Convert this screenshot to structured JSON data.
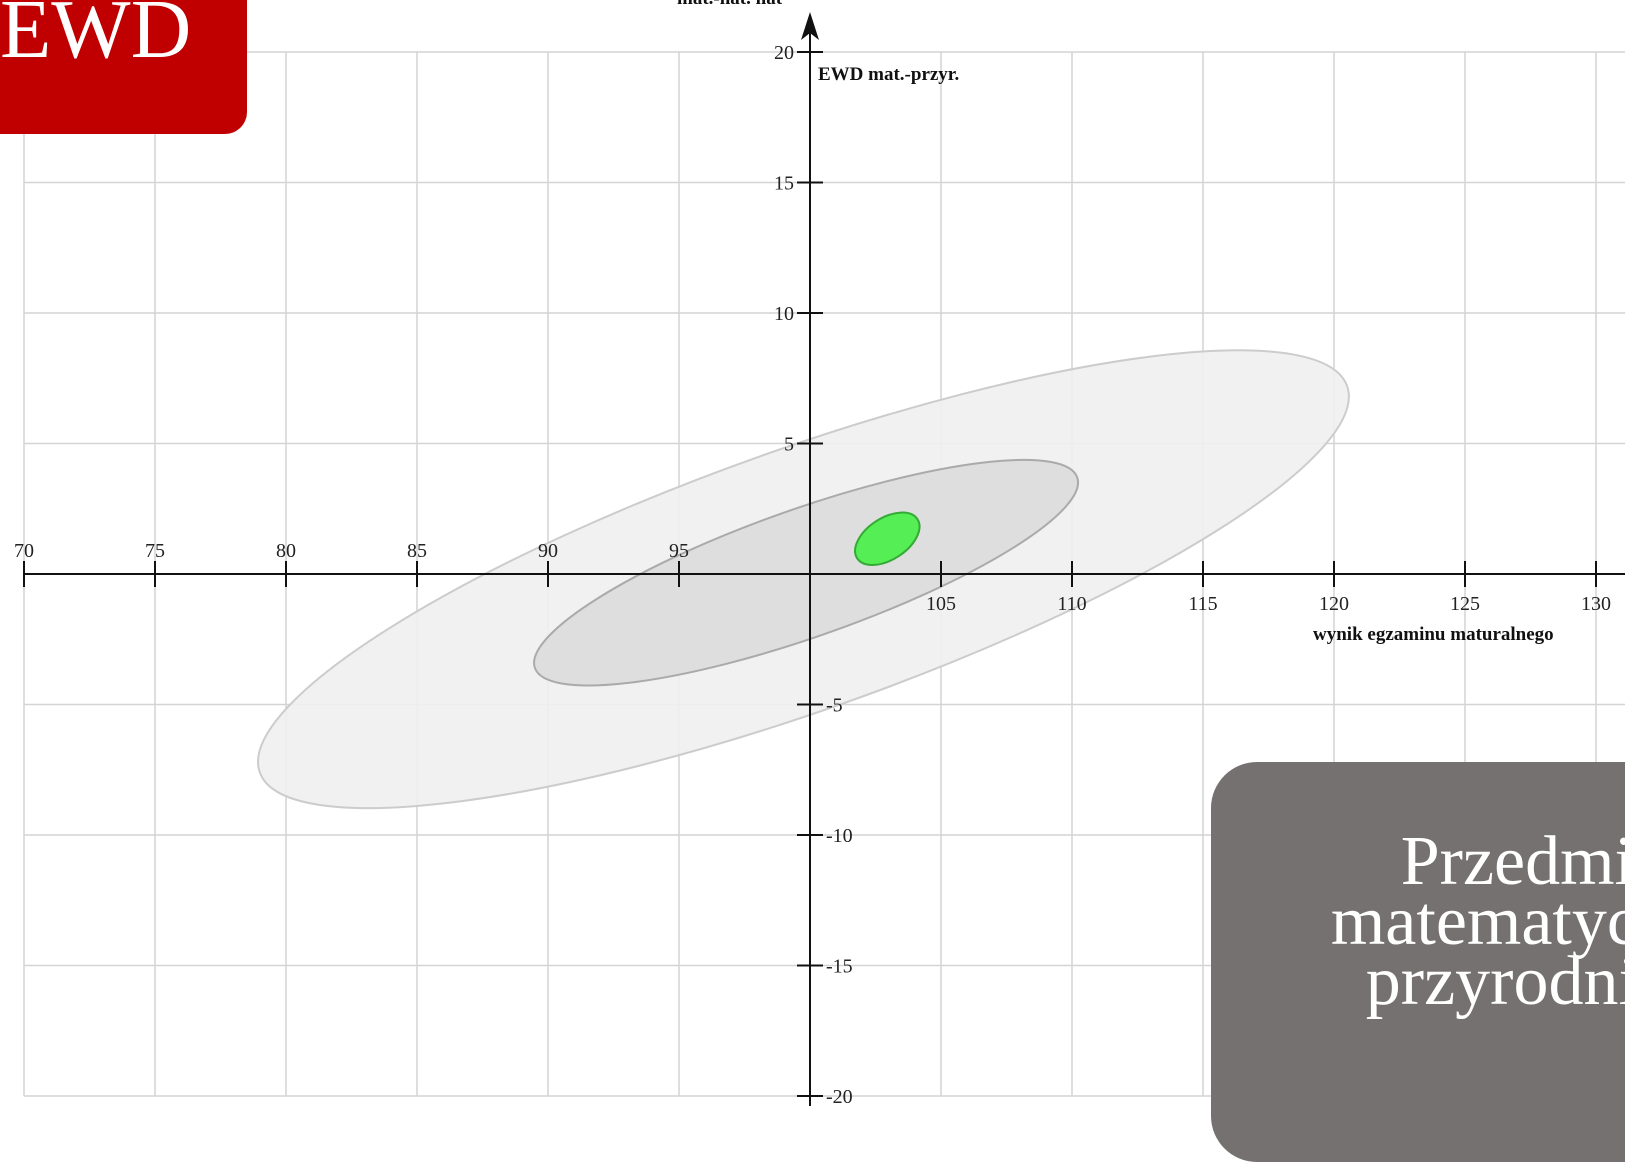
{
  "badge": {
    "text": "EWD"
  },
  "panel": {
    "lines": [
      "Przedmio",
      "matematycz",
      "przyrodnic"
    ]
  },
  "chart_data": {
    "type": "scatter",
    "title": "EWD mat.-przyr.",
    "top_label": "mat.-nat. nat",
    "xlabel": "wynik egzaminu maturalnego",
    "ylabel": "EWD mat.-przyr.",
    "xlim": [
      70,
      131.5
    ],
    "ylim": [
      -20,
      20
    ],
    "x_ticks": [
      70,
      75,
      80,
      85,
      90,
      95,
      105,
      110,
      115,
      120,
      125,
      130
    ],
    "y_ticks_positive": [
      20,
      15,
      10,
      5
    ],
    "y_ticks_negative": [
      -5,
      -10,
      -15,
      -20
    ],
    "grid": true,
    "ellipses": [
      {
        "name": "outer",
        "cx": 100,
        "cy": 0,
        "rx_poly": [
          [
            79,
            -7.8
          ],
          [
            120.5,
            7.3
          ],
          [
            120.5,
            8.2
          ],
          [
            79.5,
            -8.3
          ]
        ],
        "fill": "#f0f0f0",
        "stroke": "#cccccc",
        "points": [
          [
            79,
            -7.6
          ],
          [
            120.5,
            7.2
          ]
        ],
        "half_width": 5.3,
        "opacity": 0.9
      },
      {
        "name": "inner",
        "points": [
          [
            89.5,
            -3.6
          ],
          [
            110.2,
            3.7
          ]
        ],
        "half_width": 2.6,
        "fill": "#dcdcdc",
        "stroke": "#aaaaaa",
        "opacity": 0.9
      },
      {
        "name": "school",
        "points": [
          [
            101.8,
            0.6
          ],
          [
            104.1,
            2.1
          ]
        ],
        "half_width": 0.95,
        "fill": "#55ee55",
        "stroke": "#33aa33",
        "opacity": 1
      }
    ]
  }
}
